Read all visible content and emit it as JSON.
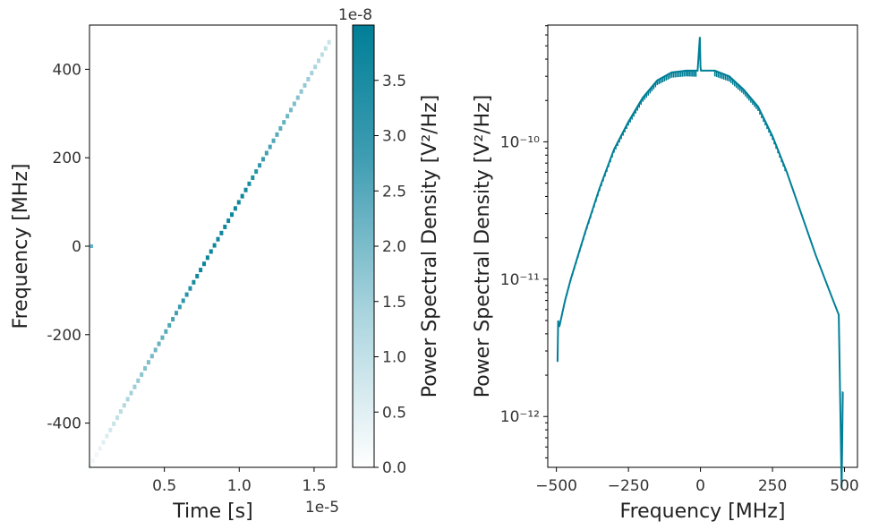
{
  "colors": {
    "accent": "#007f97",
    "accent_light": "#bfe0e8"
  },
  "chart_data": [
    {
      "type": "heatmap",
      "title": "",
      "xlabel": "Time [s]",
      "x_multiplier": "1e-5",
      "x_ticks": [
        "0.5",
        "1.0",
        "1.5"
      ],
      "x_tick_values": [
        0.5,
        1.0,
        1.5
      ],
      "xlim": [
        0.0,
        1.65
      ],
      "ylabel": "Frequency [MHz]",
      "y_ticks": [
        "400",
        "200",
        "0",
        "-200",
        "-400"
      ],
      "y_tick_values": [
        400,
        200,
        0,
        -200,
        -400
      ],
      "ylim": [
        -500,
        500
      ],
      "chirp": {
        "t_start": 0.0,
        "f_start": -500,
        "t_end": 1.6,
        "f_end": 460
      },
      "colorbar": {
        "label": "Power Spectral Density [V²/Hz]",
        "multiplier": "1e-8",
        "ticks": [
          "0.0",
          "0.5",
          "1.0",
          "1.5",
          "2.0",
          "2.5",
          "3.0",
          "3.5"
        ],
        "tick_values": [
          0.0,
          0.5,
          1.0,
          1.5,
          2.0,
          2.5,
          3.0,
          3.5
        ],
        "range": [
          0.0,
          4.0
        ]
      }
    },
    {
      "type": "line",
      "title": "",
      "xlabel": "Frequency [MHz]",
      "x_ticks": [
        "−500",
        "−250",
        "0",
        "250",
        "500"
      ],
      "x_tick_values": [
        -500,
        -250,
        0,
        250,
        500
      ],
      "xlim": [
        -530,
        545
      ],
      "ylabel": "Power Spectral Density [V²/Hz]",
      "y_scale": "log",
      "y_ticks": [
        "10⁻¹⁰",
        "10⁻¹¹",
        "10⁻¹²"
      ],
      "y_tick_exponents": [
        -10,
        -11,
        -12
      ],
      "ylim_log10": [
        -12.37,
        -9.15
      ],
      "series": [
        {
          "x": [
            -496,
            -494,
            -490,
            -470,
            -450,
            -400,
            -350,
            -300,
            -250,
            -200,
            -150,
            -100,
            -50,
            -10,
            -2,
            0,
            2,
            10,
            50,
            100,
            150,
            200,
            250,
            300,
            350,
            400,
            450,
            480,
            486,
            490,
            492,
            494,
            496
          ],
          "y": [
            2.5e-12,
            5e-12,
            4.5e-12,
            7e-12,
            1e-11,
            2.2e-11,
            4.6e-11,
            8.8e-11,
            1.4e-10,
            2.1e-10,
            2.8e-10,
            3.2e-10,
            3.3e-10,
            3.3e-10,
            5.8e-10,
            3.5e-10,
            3.3e-10,
            3.3e-10,
            3.3e-10,
            3e-10,
            2.4e-10,
            1.8e-10,
            1.1e-10,
            6e-11,
            3e-11,
            1.5e-11,
            8e-12,
            5.5e-12,
            1e-12,
            3e-13,
            6e-13,
            1.5e-12,
            1.5e-12
          ]
        }
      ]
    }
  ]
}
